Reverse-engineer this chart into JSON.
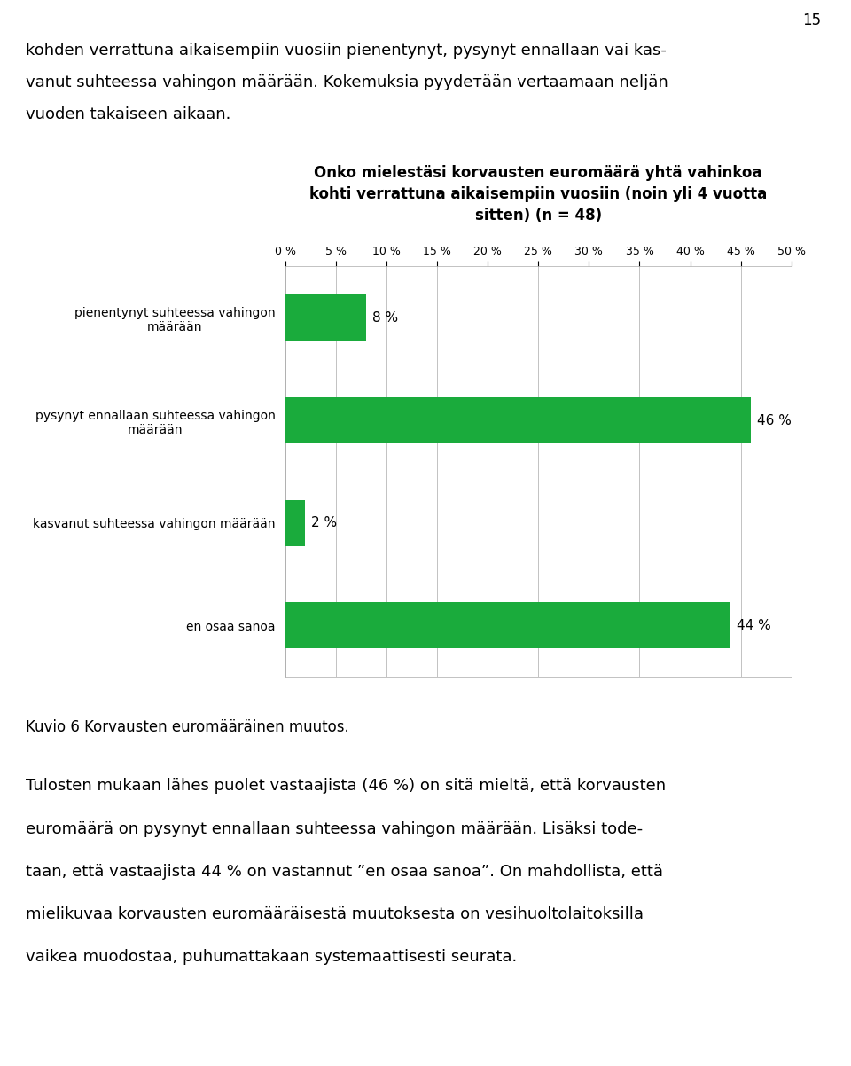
{
  "page_number": "15",
  "intro_text_line1": "kohden verrattuna aikaisempiin vuosiin pienentynyt, pysynyt ennallaan vai kas-",
  "intro_text_line2": "vanut suhteessa vahingon määrään. Kokemuksia pyydетään vertaamaan neljän",
  "intro_text_line3": "vuoden takaiseen aikaan.",
  "chart_title": "Onko mielestäsi korvausten euromäärä yhtä vahinkoa\nkohti verrattuna aikaisempiin vuosiin (noin yli 4 vuotta\nsitten) (n = 48)",
  "categories": [
    "pienentynyt suhteessa vahingon\nmäärään",
    "pysynyt ennallaan suhteessa vahingon\nmäärään",
    "kasvanut suhteessa vahingon määrään",
    "en osaa sanoa"
  ],
  "values": [
    8,
    46,
    2,
    44
  ],
  "bar_color": "#1aab3c",
  "xlim": [
    0,
    50
  ],
  "xticks": [
    0,
    5,
    10,
    15,
    20,
    25,
    30,
    35,
    40,
    45,
    50
  ],
  "caption": "Kuvio 6 Korvausten euromääräinen muutos.",
  "body_text_line1": "Tulosten mukaan lähes puolet vastaajista (46 %) on sitä mieltä, että korvausten",
  "body_text_line2": "euromäärä on pysynyt ennallaan suhteessa vahingon määrään. Lisäksi tode-",
  "body_text_line3": "taan, että vastaajista 44 % on vastannut ”en osaa sanoa”. On mahdollista, että",
  "body_text_line4": "mielikuvaa korvausten euromääräisestä muutoksesta on vesihuoltolaitoksilla",
  "body_text_line5": "vaikea muodostaa, puhumattakaan systemaattisesti seurata.",
  "background_color": "#ffffff",
  "text_color": "#000000"
}
